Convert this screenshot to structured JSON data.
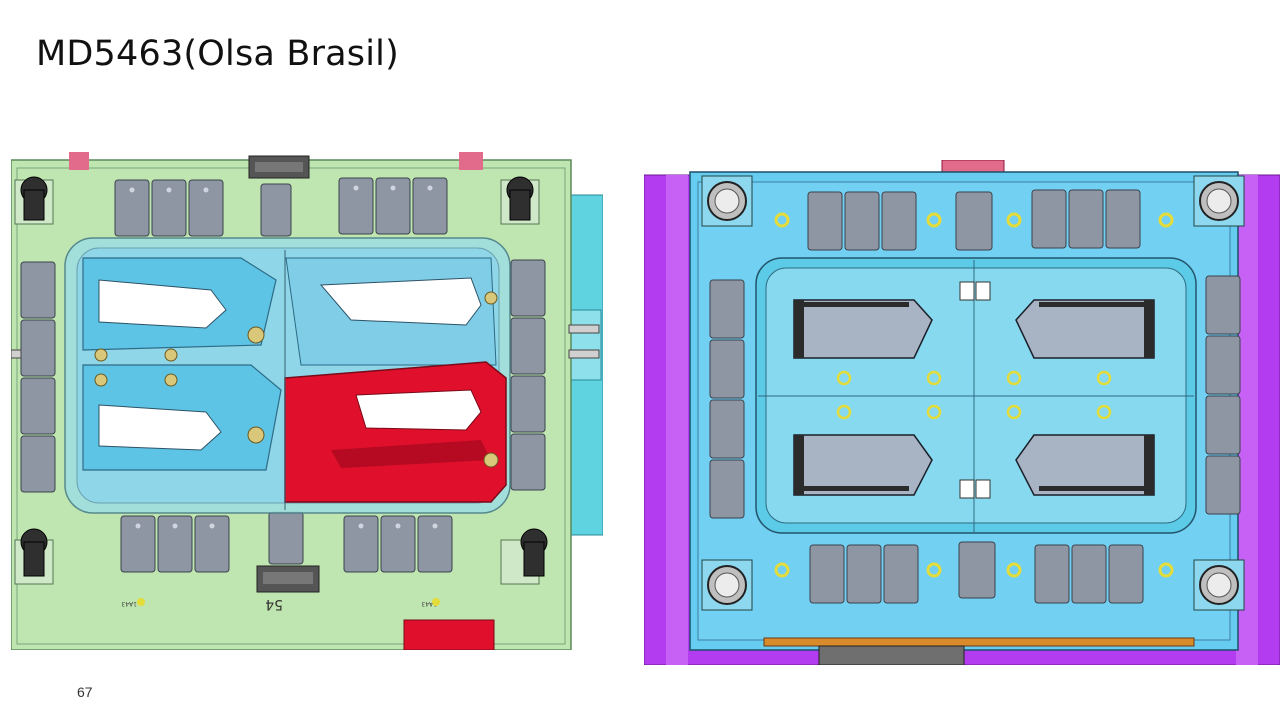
{
  "slide": {
    "title": "MD5463(Olsa Brasil)",
    "page_number": "67"
  },
  "figures": [
    {
      "name": "mold-cad-view-left",
      "marks": [
        "54",
        "1A43",
        "1A43"
      ]
    },
    {
      "name": "mold-cad-view-right",
      "marks": []
    }
  ],
  "colors": {
    "left_plate": "#bfe6b0",
    "cavity_blue": "#7fd3e6",
    "highlight_red": "#e0102c",
    "right_plate": "#66ccf0",
    "frame_purple": "#b43cf0",
    "block_gray": "#8e96a4"
  }
}
